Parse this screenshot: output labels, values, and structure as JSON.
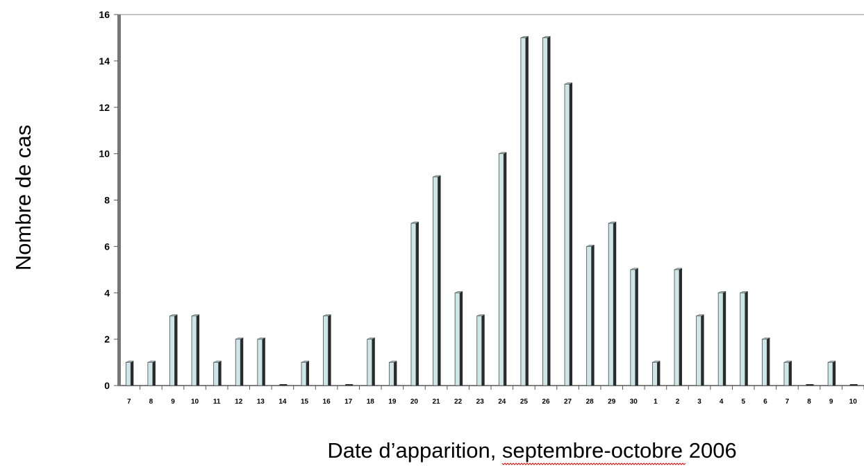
{
  "chart_data": {
    "type": "bar",
    "title": "",
    "xlabel_prefix": "Date d’apparition, ",
    "xlabel_underlined": "septembre-octobre",
    "xlabel_suffix": " 2006",
    "ylabel": "Nombre de cas",
    "ylim": [
      0,
      16
    ],
    "yticks": [
      0,
      2,
      4,
      6,
      8,
      10,
      12,
      14,
      16
    ],
    "categories": [
      "7",
      "8",
      "9",
      "10",
      "11",
      "12",
      "13",
      "14",
      "15",
      "16",
      "17",
      "18",
      "19",
      "20",
      "21",
      "22",
      "23",
      "24",
      "25",
      "26",
      "27",
      "28",
      "29",
      "30",
      "1",
      "2",
      "3",
      "4",
      "5",
      "6",
      "7",
      "8",
      "9",
      "10"
    ],
    "values": [
      1,
      1,
      3,
      3,
      1,
      2,
      2,
      0,
      1,
      3,
      0,
      2,
      1,
      7,
      9,
      4,
      3,
      10,
      15,
      15,
      13,
      6,
      7,
      5,
      1,
      5,
      3,
      4,
      4,
      2,
      1,
      0,
      1,
      0
    ],
    "grid": false,
    "legend": "none",
    "colors": {
      "bar_face": "#cde6ea",
      "bar_side": "#2a2a2a",
      "axis": "#555555",
      "squiggle": "#d00000"
    }
  }
}
